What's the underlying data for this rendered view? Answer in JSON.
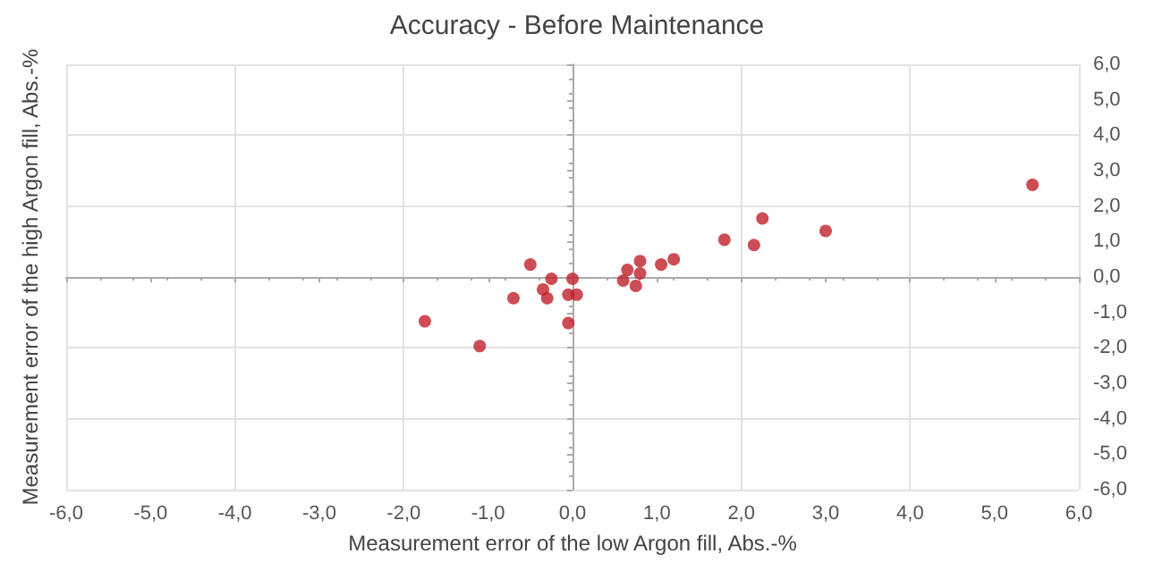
{
  "chart_data": {
    "type": "scatter",
    "title": "Accuracy - Before Maintenance",
    "xlabel": "Measurement error of the low Argon fill, Abs.-%",
    "ylabel": "Measurement error of the high Argon fill, Abs.-%",
    "series": [
      {
        "color": "#c0202a",
        "x": [
          -1.75,
          -1.1,
          -0.7,
          -0.5,
          -0.35,
          -0.3,
          -0.25,
          -0.05,
          -0.05,
          0.0,
          0.05,
          0.6,
          0.65,
          0.75,
          0.8,
          0.8,
          1.05,
          1.2,
          1.8,
          2.15,
          2.25,
          3.0,
          5.45
        ],
        "values": [
          -1.25,
          -1.95,
          -0.6,
          0.35,
          -0.35,
          -0.6,
          -0.05,
          -1.3,
          -0.5,
          -0.05,
          -0.5,
          -0.1,
          0.2,
          -0.25,
          0.45,
          0.1,
          0.35,
          0.5,
          1.05,
          0.9,
          1.65,
          1.3,
          2.6
        ]
      }
    ],
    "xlim": [
      -6,
      6
    ],
    "xticks": [
      {
        "value": -6,
        "label": "-6,0"
      },
      {
        "value": -5,
        "label": "-5,0"
      },
      {
        "value": -4,
        "label": "-4,0"
      },
      {
        "value": -3,
        "label": "-3,0"
      },
      {
        "value": -2,
        "label": "-2,0"
      },
      {
        "value": -1,
        "label": "-1,0"
      },
      {
        "value": 0,
        "label": "0,0"
      },
      {
        "value": 1,
        "label": "1,0"
      },
      {
        "value": 2,
        "label": "2,0"
      },
      {
        "value": 3,
        "label": "3,0"
      },
      {
        "value": 4,
        "label": "4,0"
      },
      {
        "value": 5,
        "label": "5,0"
      },
      {
        "value": 6,
        "label": "6,0"
      }
    ],
    "ylim": [
      -6,
      6
    ],
    "yticks": [
      {
        "value": -6,
        "label": "-6,0"
      },
      {
        "value": -5,
        "label": "-5,0"
      },
      {
        "value": -4,
        "label": "-4,0"
      },
      {
        "value": -3,
        "label": "-3,0"
      },
      {
        "value": -2,
        "label": "-2,0"
      },
      {
        "value": -1,
        "label": "-1,0"
      },
      {
        "value": 0,
        "label": "0,0"
      },
      {
        "value": 1,
        "label": "1,0"
      },
      {
        "value": 2,
        "label": "2,0"
      },
      {
        "value": 3,
        "label": "3,0"
      },
      {
        "value": 4,
        "label": "4,0"
      },
      {
        "value": 5,
        "label": "5,0"
      },
      {
        "value": 6,
        "label": "6,0"
      }
    ],
    "grid": true,
    "marker": "circle"
  }
}
